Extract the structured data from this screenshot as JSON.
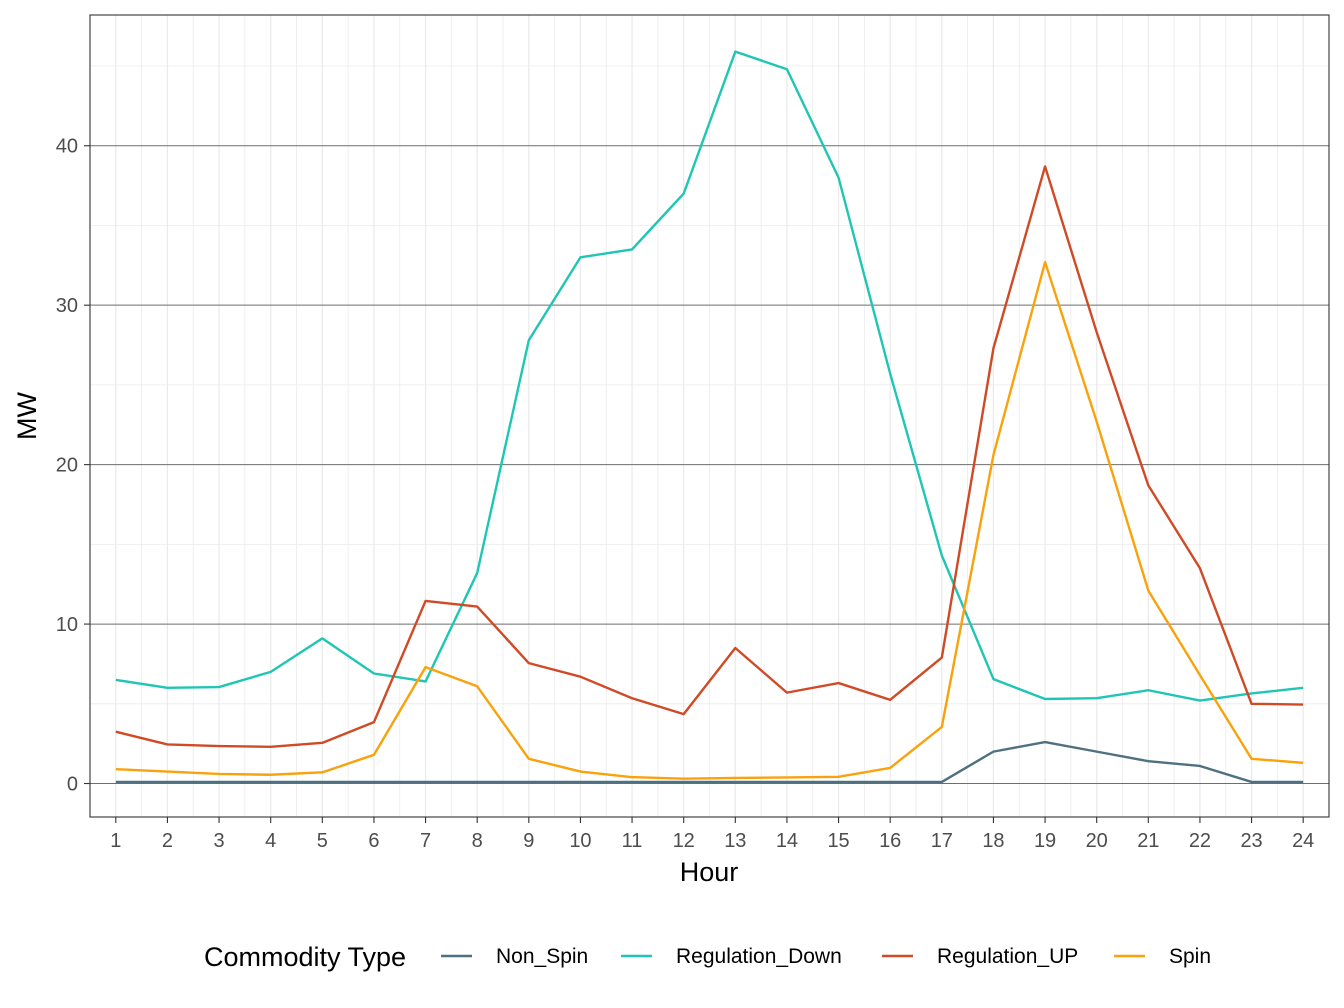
{
  "chart_data": {
    "type": "line",
    "title": "",
    "xlabel": "Hour",
    "ylabel": "MW",
    "x": [
      1,
      2,
      3,
      4,
      5,
      6,
      7,
      8,
      9,
      10,
      11,
      12,
      13,
      14,
      15,
      16,
      17,
      18,
      19,
      20,
      21,
      22,
      23,
      24
    ],
    "x_tick_labels": [
      "1",
      "2",
      "3",
      "4",
      "5",
      "6",
      "7",
      "8",
      "9",
      "10",
      "11",
      "12",
      "13",
      "14",
      "15",
      "16",
      "17",
      "18",
      "19",
      "20",
      "21",
      "22",
      "23",
      "24"
    ],
    "y_ticks": [
      0,
      10,
      20,
      30,
      40
    ],
    "y_tick_labels": [
      "0",
      "10",
      "20",
      "30",
      "40"
    ],
    "xlim": [
      0.5,
      24.5
    ],
    "ylim": [
      -2.1,
      48.2
    ],
    "grid": true,
    "legend": {
      "title": "Commodity Type",
      "position": "bottom"
    },
    "series": [
      {
        "name": "Non_Spin",
        "color": "#4e7080",
        "values": [
          0.1,
          0.1,
          0.1,
          0.1,
          0.1,
          0.1,
          0.1,
          0.1,
          0.1,
          0.1,
          0.1,
          0.1,
          0.1,
          0.1,
          0.1,
          0.1,
          0.1,
          2.0,
          2.6,
          2.0,
          1.4,
          1.1,
          0.1,
          0.1
        ]
      },
      {
        "name": "Regulation_Down",
        "color": "#1fc6b4",
        "values": [
          6.5,
          6.0,
          6.05,
          7.0,
          9.1,
          6.9,
          6.4,
          13.2,
          27.8,
          33.0,
          33.5,
          37.0,
          45.9,
          44.8,
          38.0,
          25.7,
          14.3,
          6.55,
          5.3,
          5.35,
          5.85,
          5.2,
          5.65,
          6.0
        ]
      },
      {
        "name": "Regulation_UP",
        "color": "#d04a25",
        "values": [
          3.25,
          2.45,
          2.35,
          2.3,
          2.55,
          3.85,
          11.45,
          11.1,
          7.55,
          6.7,
          5.35,
          4.35,
          8.5,
          5.7,
          6.3,
          5.25,
          7.9,
          27.3,
          38.7,
          28.3,
          18.7,
          13.5,
          5.0,
          4.95
        ]
      },
      {
        "name": "Spin",
        "color": "#f9a20b",
        "values": [
          0.9,
          0.75,
          0.6,
          0.55,
          0.7,
          1.8,
          7.3,
          6.1,
          1.55,
          0.75,
          0.4,
          0.3,
          0.35,
          0.38,
          0.42,
          0.98,
          3.55,
          20.6,
          32.7,
          22.7,
          12.1,
          6.8,
          1.55,
          1.3
        ]
      }
    ]
  }
}
